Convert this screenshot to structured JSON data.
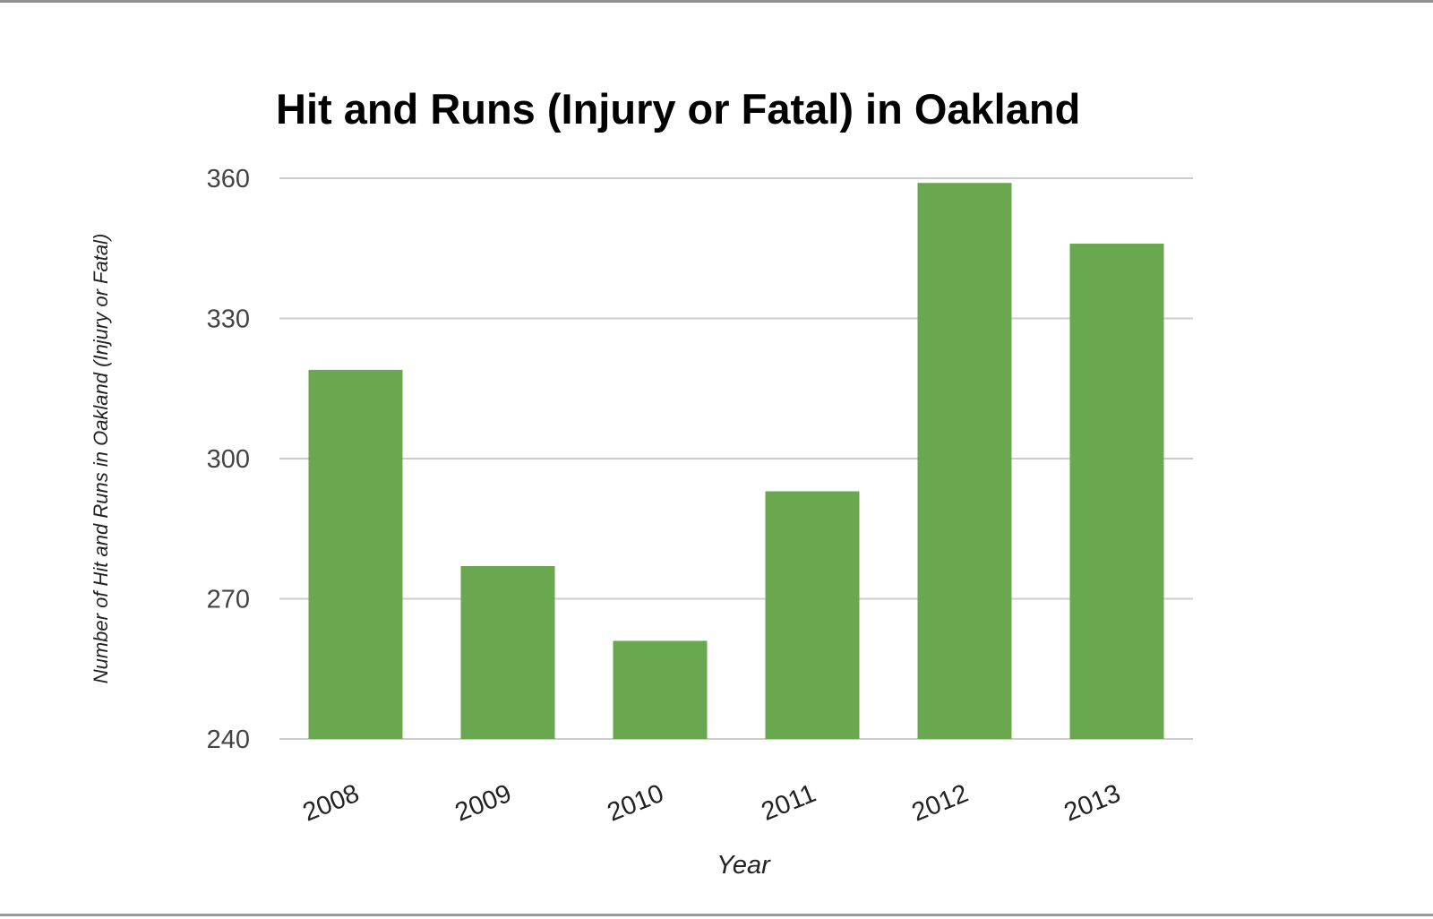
{
  "chart_data": {
    "type": "bar",
    "title": "Hit and Runs (Injury or Fatal) in Oakland",
    "xlabel": "Year",
    "ylabel": "Number of Hit and Runs in Oakland (Injury or Fatal)",
    "categories": [
      "2008",
      "2009",
      "2010",
      "2011",
      "2012",
      "2013"
    ],
    "values": [
      319,
      277,
      261,
      293,
      359,
      346
    ],
    "ylim": [
      240,
      360
    ],
    "yticks": [
      "240",
      "270",
      "300",
      "330",
      "360"
    ],
    "grid": true,
    "legend": "none",
    "bar_color": "#6aa84f",
    "grid_color": "#cccccc"
  }
}
